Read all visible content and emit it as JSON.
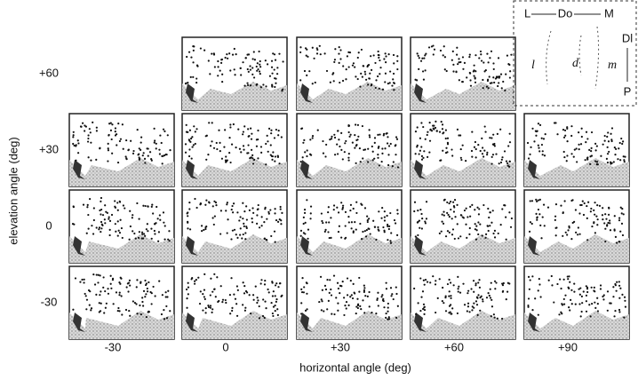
{
  "y_axis_label": "elevation angle (deg)",
  "x_axis_label": "horizontal angle (deg)",
  "columns": [
    "-30",
    "0",
    "+30",
    "+60",
    "+90"
  ],
  "rows": [
    "+60",
    "+30",
    "0",
    "-30"
  ],
  "inset": {
    "left": "L",
    "dorsal": "Do",
    "medial": "M",
    "distal": "Dl",
    "proximal": "P",
    "regions": [
      "l",
      "d",
      "m"
    ]
  }
}
